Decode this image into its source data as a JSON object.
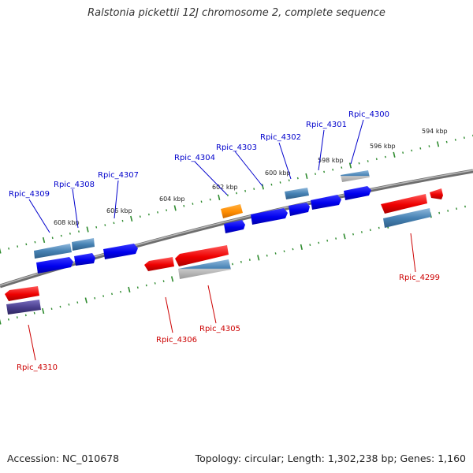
{
  "title": "Ralstonia pickettii 12J chromosome 2, complete sequence",
  "footer": {
    "accession": "Accession: NC_010678",
    "summary": "Topology: circular; Length: 1,302,238 bp; Genes: 1,160"
  },
  "scale_labels": [
    "594 kbp",
    "596 kbp",
    "598 kbp",
    "600 kbp",
    "602 kbp",
    "604 kbp",
    "606 kbp",
    "608 kbp"
  ],
  "gene_labels": {
    "Rpic_4300": "Rpic_4300",
    "Rpic_4301": "Rpic_4301",
    "Rpic_4302": "Rpic_4302",
    "Rpic_4303": "Rpic_4303",
    "Rpic_4304": "Rpic_4304",
    "Rpic_4307": "Rpic_4307",
    "Rpic_4308": "Rpic_4308",
    "Rpic_4309": "Rpic_4309",
    "Rpic_4299": "Rpic_4299",
    "Rpic_4305": "Rpic_4305",
    "Rpic_4306": "Rpic_4306",
    "Rpic_4310": "Rpic_4310"
  },
  "colors": {
    "forward_cds": "#0000ee",
    "reverse_cds": "#ee0000",
    "gene_feature": "#4682b4",
    "rna": "#ff8c00",
    "reverse_gene_feature": "#483d8b",
    "backbone": "#888888",
    "tick": "#2e8b2e",
    "forward_label": "#0000cc",
    "reverse_label": "#cc0000"
  }
}
